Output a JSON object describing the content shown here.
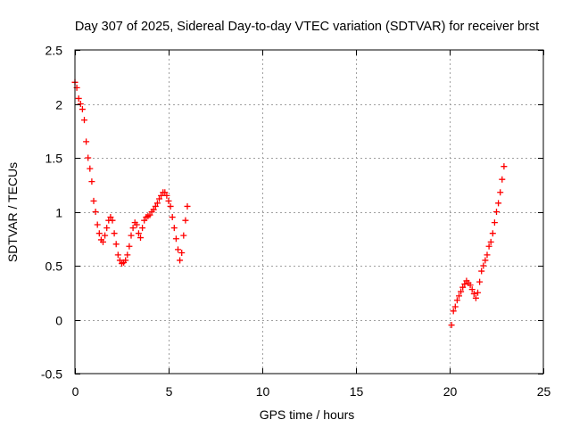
{
  "chart_data": {
    "type": "scatter",
    "title": "Day 307 of 2025, Sidereal Day-to-day VTEC variation (SDTVAR) for receiver brst",
    "xlabel": "GPS time / hours",
    "ylabel": "SDTVAR / TECUs",
    "xlim": [
      0,
      25
    ],
    "ylim": [
      -0.5,
      2.5
    ],
    "xticks": [
      0,
      5,
      10,
      15,
      20,
      25
    ],
    "yticks": [
      -0.5,
      0,
      0.5,
      1,
      1.5,
      2,
      2.5
    ],
    "xtick_labels": [
      "0",
      "5",
      "10",
      "15",
      "20",
      "25"
    ],
    "ytick_labels": [
      "-0.5",
      "0",
      "0.5",
      "1",
      "1.5",
      "2",
      "2.5"
    ],
    "grid": true,
    "marker": "plus",
    "color": "#ff0000",
    "series": [
      {
        "x": [
          0.0,
          0.1,
          0.2,
          0.3,
          0.4,
          0.5,
          0.6,
          0.7,
          0.8,
          0.9,
          1.0,
          1.1,
          1.2,
          1.3,
          1.4,
          1.5,
          1.6,
          1.7,
          1.8,
          1.9,
          2.0,
          2.1,
          2.2,
          2.3,
          2.4,
          2.5,
          2.6,
          2.7,
          2.8,
          2.9,
          3.0,
          3.1,
          3.2,
          3.3,
          3.4,
          3.5,
          3.6,
          3.7,
          3.8,
          3.9,
          4.0,
          4.1,
          4.2,
          4.3,
          4.4,
          4.5,
          4.6,
          4.7,
          4.8,
          4.9,
          5.0,
          5.1,
          5.2,
          5.3,
          5.4,
          5.5,
          5.6,
          5.7,
          5.8,
          5.9,
          6.0
        ],
        "y": [
          2.2,
          2.15,
          2.05,
          2.0,
          1.95,
          1.85,
          1.65,
          1.5,
          1.4,
          1.28,
          1.1,
          1.0,
          0.88,
          0.8,
          0.74,
          0.72,
          0.78,
          0.85,
          0.92,
          0.95,
          0.92,
          0.8,
          0.7,
          0.6,
          0.55,
          0.52,
          0.53,
          0.55,
          0.6,
          0.68,
          0.78,
          0.85,
          0.9,
          0.88,
          0.8,
          0.76,
          0.85,
          0.92,
          0.95,
          0.96,
          0.97,
          1.0,
          1.02,
          1.05,
          1.08,
          1.12,
          1.15,
          1.18,
          1.18,
          1.15,
          1.1,
          1.05,
          0.95,
          0.85,
          0.75,
          0.65,
          0.55,
          0.62,
          0.78,
          0.92,
          1.05
        ]
      },
      {
        "x": [
          20.1,
          20.2,
          20.3,
          20.4,
          20.5,
          20.6,
          20.7,
          20.8,
          20.9,
          21.0,
          21.1,
          21.2,
          21.3,
          21.4,
          21.5,
          21.6,
          21.7,
          21.8,
          21.9,
          22.0,
          22.1,
          22.2,
          22.3,
          22.4,
          22.5,
          22.6,
          22.7,
          22.8,
          22.9
        ],
        "y": [
          -0.05,
          0.08,
          0.12,
          0.18,
          0.22,
          0.26,
          0.3,
          0.33,
          0.36,
          0.34,
          0.32,
          0.28,
          0.24,
          0.2,
          0.25,
          0.35,
          0.45,
          0.5,
          0.55,
          0.6,
          0.68,
          0.72,
          0.8,
          0.9,
          1.0,
          1.08,
          1.18,
          1.3,
          1.42
        ]
      }
    ]
  }
}
